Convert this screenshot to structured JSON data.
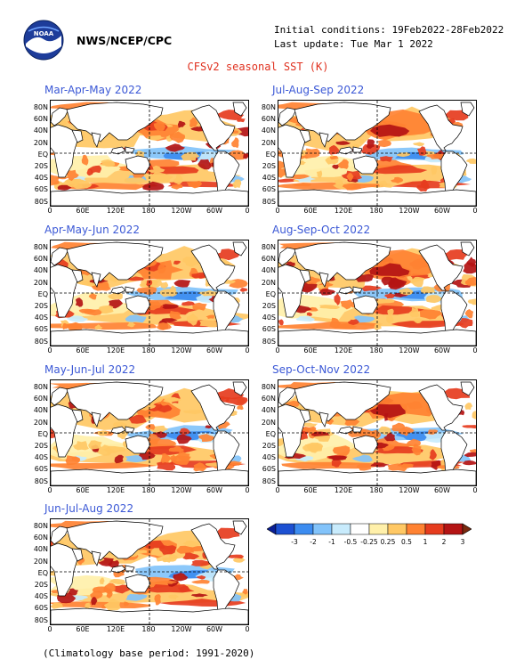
{
  "header": {
    "logo_text": "NOAA",
    "org": "NWS/NCEP/CPC",
    "initial_conditions": "Initial conditions: 19Feb2022-28Feb2022",
    "last_update": "Last update: Tue Mar 1 2022",
    "title": "CFSv2 seasonal SST (K)"
  },
  "lat_labels": [
    "80N",
    "60N",
    "40N",
    "20N",
    "EQ",
    "20S",
    "40S",
    "60S",
    "80S"
  ],
  "lon_labels": [
    "0",
    "60E",
    "120E",
    "180",
    "120W",
    "60W",
    "0"
  ],
  "panels": [
    {
      "label": "Mar-Apr-May 2022"
    },
    {
      "label": "Jul-Aug-Sep 2022"
    },
    {
      "label": "Apr-May-Jun 2022"
    },
    {
      "label": "Aug-Sep-Oct 2022"
    },
    {
      "label": "May-Jun-Jul 2022"
    },
    {
      "label": "Sep-Oct-Nov 2022"
    },
    {
      "label": "Jun-Jul-Aug 2022"
    }
  ],
  "colorbar": {
    "ticks": [
      "-3",
      "-2",
      "-1",
      "-0.5",
      "-0.25",
      "0.25",
      "0.5",
      "1",
      "2",
      "3"
    ],
    "colors": [
      "#0a1e96",
      "#1c50d2",
      "#3c8cf0",
      "#82c3fa",
      "#c8ebfc",
      "#ffffff",
      "#fff0aa",
      "#ffc864",
      "#ff8232",
      "#e63c1e",
      "#b41414",
      "#7a2a10"
    ]
  },
  "footer": "(Climatology base period: 1991-2020)"
}
